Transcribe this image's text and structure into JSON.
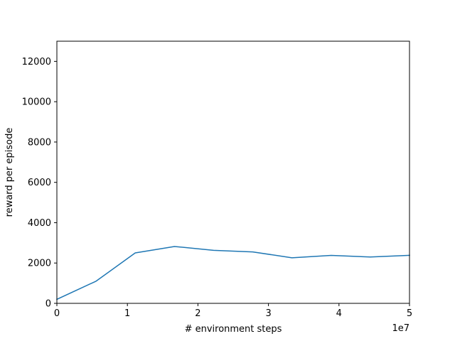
{
  "chart_data": {
    "type": "line",
    "xlabel": "# environment steps",
    "ylabel": "reward per episode",
    "x_offset_label": "1e7",
    "xlim": [
      0,
      5
    ],
    "ylim": [
      0,
      13000
    ],
    "xticks": [
      0,
      1,
      2,
      3,
      4,
      5
    ],
    "xtick_labels": [
      "0",
      "1",
      "2",
      "3",
      "4",
      "5"
    ],
    "yticks": [
      0,
      2000,
      4000,
      6000,
      8000,
      10000,
      12000
    ],
    "ytick_labels": [
      "0",
      "2000",
      "4000",
      "6000",
      "8000",
      "10000",
      "12000"
    ],
    "grid": false,
    "series": [
      {
        "color": "#1f77b4",
        "x": [
          0,
          0.556,
          1.111,
          1.667,
          2.222,
          2.778,
          3.333,
          3.889,
          4.444,
          5.0
        ],
        "y": [
          200,
          1100,
          2500,
          2820,
          2630,
          2550,
          2260,
          2380,
          2300,
          2380
        ]
      }
    ]
  }
}
